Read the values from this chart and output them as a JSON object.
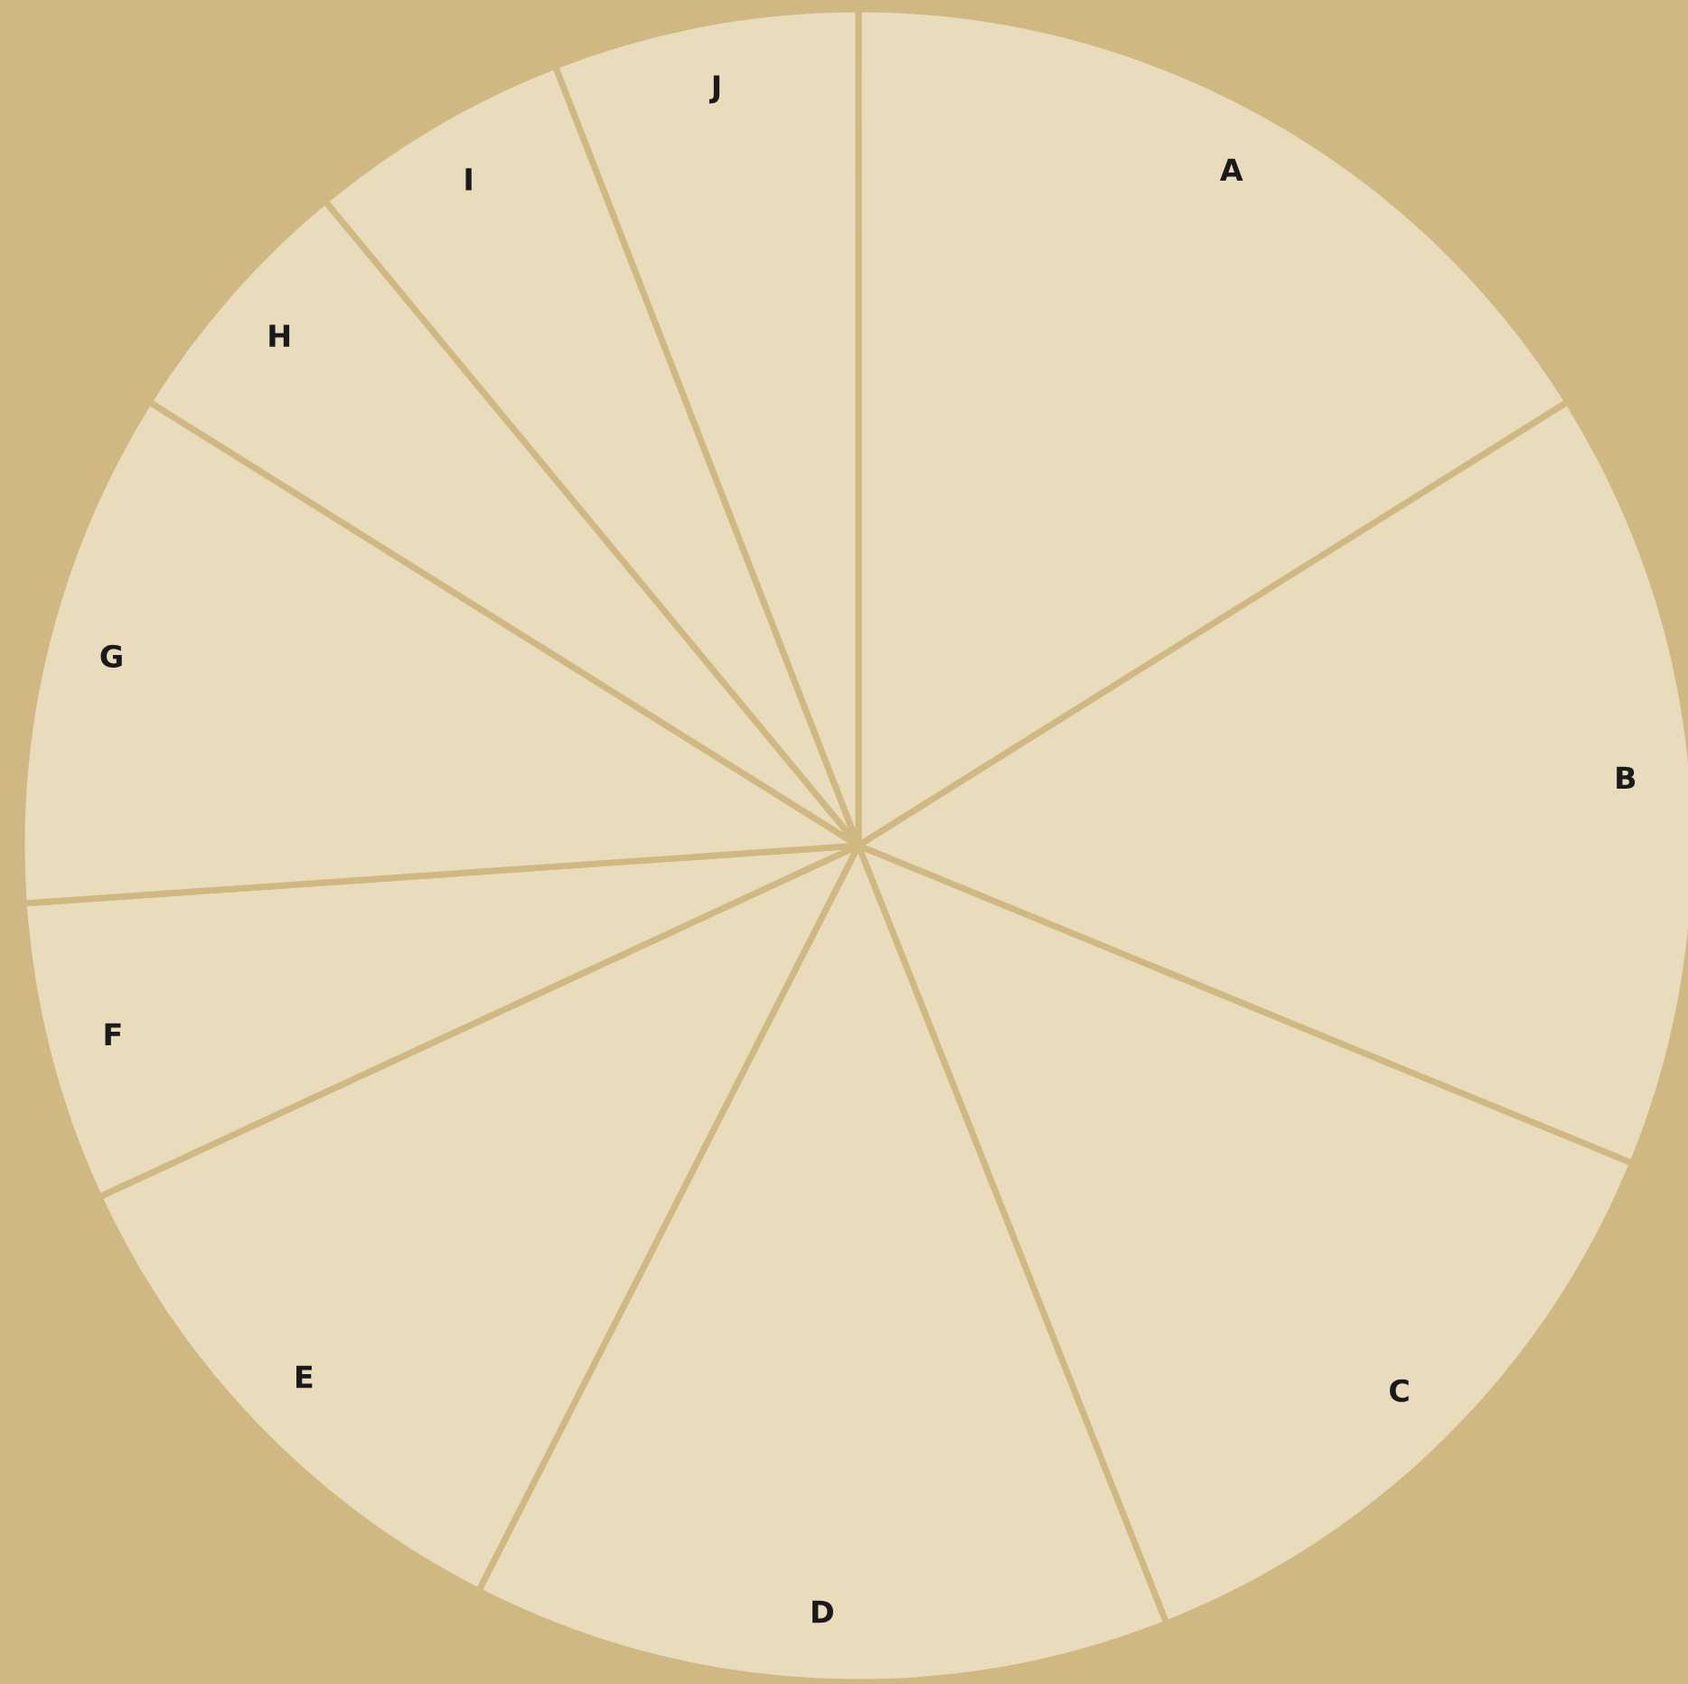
{
  "chart_data": {
    "type": "pie",
    "categories": [
      "A",
      "B",
      "C",
      "D",
      "E",
      "F",
      "G",
      "H",
      "I",
      "J"
    ],
    "values": [
      16.1,
      15.1,
      12.8,
      13.5,
      10.6,
      5.8,
      10.0,
      5.1,
      5.1,
      5.9
    ],
    "colors": [
      "#e8dcbc",
      "#e8dcbc",
      "#e8dcbc",
      "#e8dcbc",
      "#e8dcbc",
      "#e8dcbc",
      "#e8dcbc",
      "#e8dcbc",
      "#e8dcbc",
      "#e8dcbc"
    ]
  }
}
